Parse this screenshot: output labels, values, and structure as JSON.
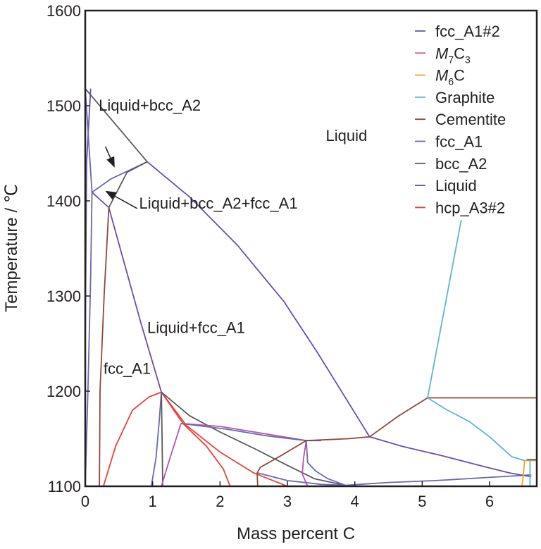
{
  "chart_data": {
    "type": "line",
    "title": "",
    "xlabel": "Mass percent C",
    "ylabel": "Temperature / ℃",
    "xlim": [
      0,
      6.7
    ],
    "ylim": [
      1100,
      1600
    ],
    "x_ticks": [
      "0",
      "1",
      "2",
      "3",
      "4",
      "5",
      "6"
    ],
    "y_ticks": [
      "1100",
      "1200",
      "1300",
      "1400",
      "1500",
      "1600"
    ],
    "grid": false,
    "legend_position": "top-right",
    "legend": [
      {
        "name": "fcc_A1#2",
        "base": "fcc_A1#2",
        "sub": "",
        "suffix": "",
        "color": "#5b5fa8"
      },
      {
        "name": "M7C3",
        "base": "M",
        "sub": "7",
        "suffix": "C3",
        "color": "#b256b0"
      },
      {
        "name": "M6C",
        "base": "M",
        "sub": "6",
        "suffix": "C",
        "color": "#f0a22e"
      },
      {
        "name": "Graphite",
        "base": "Graphite",
        "sub": "",
        "suffix": "",
        "color": "#5fb3d4"
      },
      {
        "name": "Cementite",
        "base": "Cementite",
        "sub": "",
        "suffix": "",
        "color": "#8b4a3c"
      },
      {
        "name": "fcc_A1",
        "base": "fcc_A1",
        "sub": "",
        "suffix": "",
        "color": "#6a68b0"
      },
      {
        "name": "bcc_A2",
        "base": "bcc_A2",
        "sub": "",
        "suffix": "",
        "color": "#5a5a5a"
      },
      {
        "name": "Liquid",
        "base": "Liquid",
        "sub": "",
        "suffix": "",
        "color": "#6a4fa8"
      },
      {
        "name": "hcp_A3#2",
        "base": "hcp_A3#2",
        "sub": "",
        "suffix": "",
        "color": "#e8413c"
      }
    ],
    "region_labels": [
      {
        "text": "Liquid+bcc_A2",
        "x": 0.2,
        "y": 1495
      },
      {
        "text": "Liquid",
        "x": 3.57,
        "y": 1463
      },
      {
        "text": "Liquid+bcc_A2+fcc_A1",
        "x": 0.8,
        "y": 1392
      },
      {
        "text": "Liquid+fcc_A1",
        "x": 0.92,
        "y": 1261
      },
      {
        "text": "fcc_A1",
        "x": 0.27,
        "y": 1218
      }
    ],
    "arrows": [
      {
        "from": [
          0.3,
          1457
        ],
        "to": [
          0.43,
          1436
        ]
      },
      {
        "from": [
          0.77,
          1392
        ],
        "to": [
          0.31,
          1410
        ]
      }
    ],
    "series": [
      {
        "color": "#6a4fa8",
        "x": [
          0.0,
          0.0,
          0.02,
          0.08
        ],
        "y": [
          1100,
          1250,
          1440,
          1518
        ]
      },
      {
        "color": "#5a5a5a",
        "x": [
          0.0,
          0.92
        ],
        "y": [
          1518,
          1441
        ]
      },
      {
        "color": "#6a4fa8",
        "x": [
          0.92,
          1.55,
          2.25,
          2.95,
          3.45,
          4.22
        ],
        "y": [
          1441,
          1404,
          1354,
          1294,
          1240,
          1152
        ]
      },
      {
        "color": "#6a68b0",
        "x": [
          0.0,
          0.04,
          0.1,
          0.38,
          0.92
        ],
        "y": [
          1518,
          1475,
          1409,
          1423,
          1441
        ]
      },
      {
        "color": "#5a5a5a",
        "x": [
          0.35,
          0.62,
          0.92
        ],
        "y": [
          1393,
          1430,
          1441
        ]
      },
      {
        "color": "#6a4fa8",
        "x": [
          0.1,
          0.35,
          0.57,
          0.82,
          1.13
        ],
        "y": [
          1409,
          1393,
          1337,
          1273,
          1199
        ]
      },
      {
        "color": "#6a68b0",
        "x": [
          0.1,
          0.08,
          0.04,
          0.0
        ],
        "y": [
          1409,
          1320,
          1200,
          1100
        ]
      },
      {
        "color": "#8b4a3c",
        "x": [
          0.35,
          0.28,
          0.22,
          0.21
        ],
        "y": [
          1393,
          1300,
          1200,
          1100
        ]
      },
      {
        "color": "#e8413c",
        "x": [
          0.27,
          0.45,
          0.7,
          0.95,
          1.13
        ],
        "y": [
          1100,
          1142,
          1180,
          1194,
          1199
        ]
      },
      {
        "color": "#e8413c",
        "x": [
          1.13,
          1.45,
          1.8,
          2.05,
          2.15
        ],
        "y": [
          1199,
          1166,
          1142,
          1118,
          1100
        ]
      },
      {
        "color": "#e8413c",
        "x": [
          1.13,
          1.5,
          2.0,
          2.5,
          3.0,
          3.6
        ],
        "y": [
          1199,
          1164,
          1136,
          1114,
          1100,
          1098
        ]
      },
      {
        "color": "#5a5a5a",
        "x": [
          1.13,
          1.55,
          2.0,
          2.5,
          3.0,
          3.4,
          3.85
        ],
        "y": [
          1199,
          1174,
          1157,
          1140,
          1122,
          1108,
          1101
        ]
      },
      {
        "color": "#6a68b0",
        "x": [
          1.13,
          1.1,
          1.05,
          0.98
        ],
        "y": [
          1199,
          1170,
          1130,
          1100
        ]
      },
      {
        "color": "#5a5a5a",
        "x": [
          1.13,
          1.14,
          1.15
        ],
        "y": [
          1199,
          1150,
          1100
        ]
      },
      {
        "color": "#b256b0",
        "x": [
          1.13,
          1.25,
          1.42
        ],
        "y": [
          1100,
          1128,
          1166
        ]
      },
      {
        "color": "#b256b0",
        "x": [
          1.42,
          2.0,
          2.6,
          3.28
        ],
        "y": [
          1166,
          1163,
          1156,
          1148
        ]
      },
      {
        "color": "#6a68b0",
        "x": [
          1.42,
          2.1,
          2.7,
          3.28,
          3.5
        ],
        "y": [
          1166,
          1160,
          1153,
          1148,
          1148
        ]
      },
      {
        "color": "#b256b0",
        "x": [
          3.28,
          3.24,
          3.22,
          3.3
        ],
        "y": [
          1148,
          1130,
          1113,
          1100
        ]
      },
      {
        "color": "#6a68b0",
        "x": [
          3.28,
          3.3,
          3.42,
          3.6,
          3.86
        ],
        "y": [
          1148,
          1125,
          1116,
          1108,
          1101
        ]
      },
      {
        "color": "#8b4a3c",
        "x": [
          2.56,
          2.55,
          2.6,
          2.9,
          3.28,
          3.9,
          4.22
        ],
        "y": [
          1100,
          1114,
          1120,
          1132,
          1148,
          1150,
          1152
        ]
      },
      {
        "color": "#6a68b0",
        "x": [
          2.56,
          3.0,
          3.5,
          3.86
        ],
        "y": [
          1114,
          1106,
          1102,
          1101
        ]
      },
      {
        "color": "#6a68b0",
        "x": [
          3.86,
          4.5,
          5.2,
          5.9,
          6.4,
          6.62
        ],
        "y": [
          1101,
          1104,
          1106,
          1109,
          1111,
          1112
        ]
      },
      {
        "color": "#6a4fa8",
        "x": [
          4.22,
          4.7,
          5.3,
          5.9,
          6.3,
          6.62
        ],
        "y": [
          1152,
          1142,
          1132,
          1121,
          1114,
          1110
        ]
      },
      {
        "color": "#8b4a3c",
        "x": [
          4.22,
          4.65,
          5.08
        ],
        "y": [
          1152,
          1174,
          1193
        ]
      },
      {
        "color": "#8b4a3c",
        "x": [
          5.08,
          6.0,
          6.7
        ],
        "y": [
          1193,
          1193,
          1193
        ]
      },
      {
        "color": "#5fb3d4",
        "x": [
          5.08,
          5.58
        ],
        "y": [
          1193,
          1380
        ]
      },
      {
        "color": "#5fb3d4",
        "x": [
          5.08,
          5.35,
          5.7,
          6.0,
          6.33,
          6.52
        ],
        "y": [
          1193,
          1181,
          1168,
          1152,
          1131,
          1127
        ]
      },
      {
        "color": "#f0a22e",
        "x": [
          6.52,
          6.7
        ],
        "y": [
          1127,
          1127
        ]
      },
      {
        "color": "#f0a22e",
        "x": [
          6.52,
          6.5,
          6.48
        ],
        "y": [
          1127,
          1112,
          1100
        ]
      },
      {
        "color": "#5a5a5a",
        "x": [
          6.55,
          6.7
        ],
        "y": [
          1128,
          1128
        ]
      },
      {
        "color": "#5fb3d4",
        "x": [
          6.6,
          6.6
        ],
        "y": [
          1127,
          1100
        ]
      }
    ]
  }
}
